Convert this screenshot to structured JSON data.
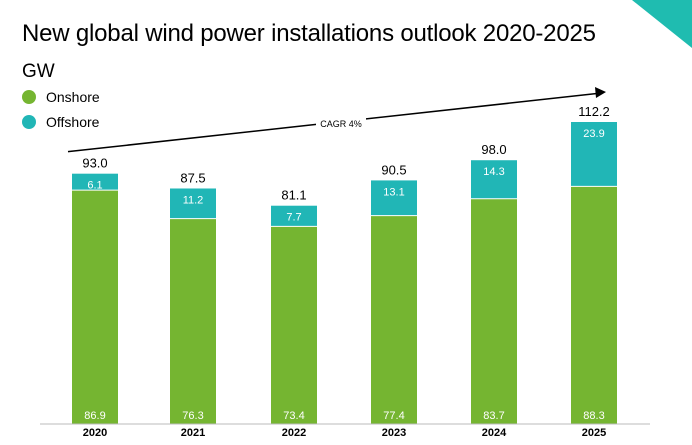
{
  "title": "New global wind power installations outlook 2020-2025",
  "unit": "GW",
  "colors": {
    "onshore": "#75b531",
    "offshore": "#21b6b6",
    "accent": "#1fbcb0"
  },
  "legend": [
    {
      "label": "Onshore",
      "color": "#75b531"
    },
    {
      "label": "Offshore",
      "color": "#21b6b6"
    }
  ],
  "annotation": {
    "label": "CAGR 4%"
  },
  "chart_data": {
    "type": "bar",
    "stacked": true,
    "title": "New global wind power installations outlook 2020-2025",
    "ylabel": "GW",
    "categories": [
      "2020",
      "2021",
      "2022",
      "2023",
      "2024",
      "2025"
    ],
    "series": [
      {
        "name": "Onshore",
        "values": [
          86.9,
          76.3,
          73.4,
          77.4,
          83.7,
          88.3
        ]
      },
      {
        "name": "Offshore",
        "values": [
          6.1,
          11.2,
          7.7,
          13.1,
          14.3,
          23.9
        ]
      }
    ],
    "totals": [
      "93.0",
      "87.5",
      "81.1",
      "90.5",
      "98.0",
      "112.2"
    ],
    "onshore_labels": [
      "86.9",
      "76.3",
      "73.4",
      "77.4",
      "83.7",
      "88.3"
    ],
    "offshore_labels": [
      "6.1",
      "11.2",
      "7.7",
      "13.1",
      "14.3",
      "23.9"
    ],
    "ylim": [
      0,
      112.2
    ],
    "grid": false,
    "legend_position": "top-left"
  }
}
